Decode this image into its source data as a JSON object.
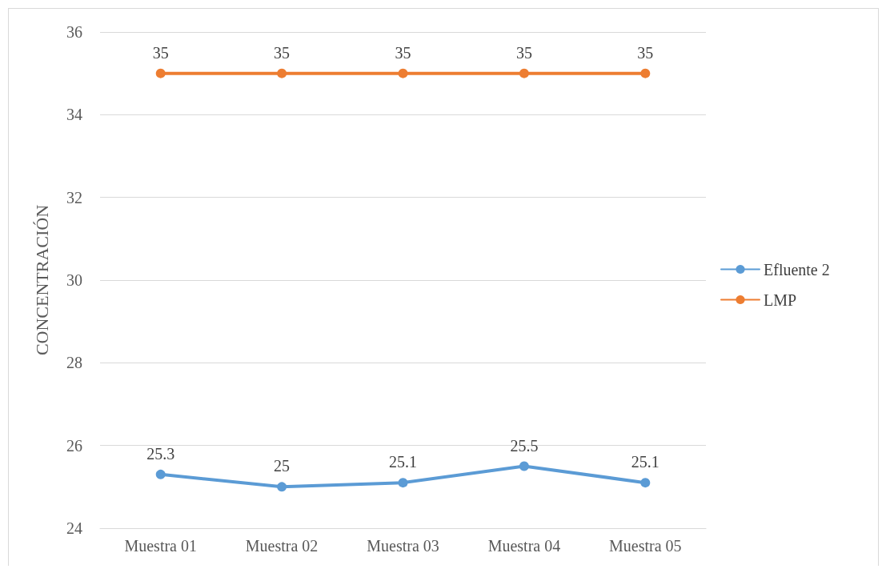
{
  "chart_data": {
    "type": "line",
    "ylabel": "CONCENTRACIÓN",
    "categories": [
      "Muestra 01",
      "Muestra 02",
      "Muestra 03",
      "Muestra 04",
      "Muestra 05"
    ],
    "series": [
      {
        "name": "Efluente 2",
        "color": "#5b9bd5",
        "values": [
          25.3,
          25,
          25.1,
          25.5,
          25.1
        ]
      },
      {
        "name": "LMP",
        "color": "#ed7d31",
        "values": [
          35,
          35,
          35,
          35,
          35
        ]
      }
    ],
    "ylim": [
      24,
      36
    ],
    "yticks": [
      24,
      26,
      28,
      30,
      32,
      34,
      36
    ],
    "grid": "y",
    "legend": "right",
    "marker": "circle",
    "line_style": "solid",
    "data_labels": true
  }
}
